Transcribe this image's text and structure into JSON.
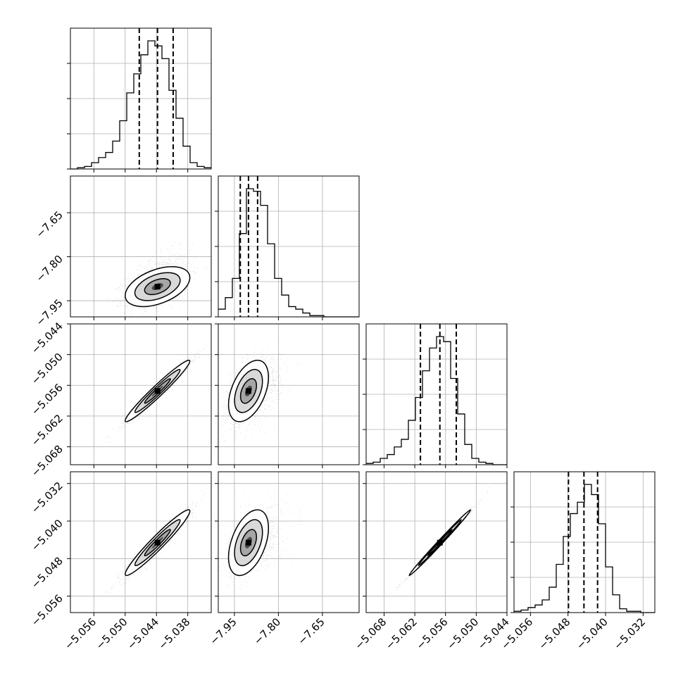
{
  "chart_data": {
    "type": "corner",
    "grid": true,
    "parameters": [
      {
        "ticks": [
          "−5.056",
          "−5.050",
          "−5.044",
          "−5.038"
        ],
        "tick_values": [
          -5.056,
          -5.05,
          -5.044,
          -5.038
        ],
        "range": [
          -5.0605,
          -5.0335
        ]
      },
      {
        "ticks": [
          "−7.95",
          "−7.80",
          "−7.65"
        ],
        "tick_values": [
          -7.95,
          -7.8,
          -7.65
        ],
        "range": [
          -8.005,
          -7.525
        ]
      },
      {
        "ticks": [
          "−5.068",
          "−5.062",
          "−5.056",
          "−5.050",
          "−5.044"
        ],
        "tick_values": [
          -5.068,
          -5.062,
          -5.056,
          -5.05,
          -5.044
        ],
        "range": [
          -5.0715,
          -5.044
        ]
      },
      {
        "ticks": [
          "−5.056",
          "−5.048",
          "−5.040",
          "−5.032"
        ],
        "tick_values": [
          -5.056,
          -5.048,
          -5.04,
          -5.032
        ],
        "range": [
          -5.0595,
          -5.0295
        ]
      }
    ],
    "histograms": [
      {
        "param": 0,
        "bin_start": -5.0605,
        "bin_width": 0.00135,
        "counts": [
          0,
          1,
          2,
          5,
          9,
          13,
          22,
          38,
          60,
          75,
          90,
          101,
          97,
          87,
          62,
          40,
          18,
          5,
          2,
          1
        ],
        "quantiles": [
          -5.0473,
          -5.0438,
          -5.0408
        ]
      },
      {
        "param": 1,
        "bin_start": -8.005,
        "bin_width": 0.024,
        "counts": [
          6,
          15,
          30,
          65,
          100,
          98,
          87,
          57,
          30,
          17,
          8,
          6,
          3,
          1,
          1,
          0,
          0,
          0,
          0,
          0
        ],
        "quantiles": [
          -7.93,
          -7.902,
          -7.871
        ]
      },
      {
        "param": 2,
        "bin_start": -5.0715,
        "bin_width": 0.001375,
        "counts": [
          1,
          2,
          5,
          8,
          14,
          20,
          35,
          53,
          74,
          92,
          101,
          97,
          68,
          40,
          16,
          5,
          2,
          1,
          0,
          0
        ],
        "quantiles": [
          -5.0609,
          -5.0571,
          -5.0539
        ]
      },
      {
        "param": 3,
        "bin_start": -5.0595,
        "bin_width": 0.0015,
        "counts": [
          1,
          2,
          4,
          6,
          10,
          20,
          38,
          60,
          78,
          87,
          101,
          93,
          70,
          36,
          14,
          3,
          1,
          1,
          0,
          0
        ],
        "quantiles": [
          -5.0479,
          -5.0446,
          -5.0417
        ]
      }
    ]
  }
}
